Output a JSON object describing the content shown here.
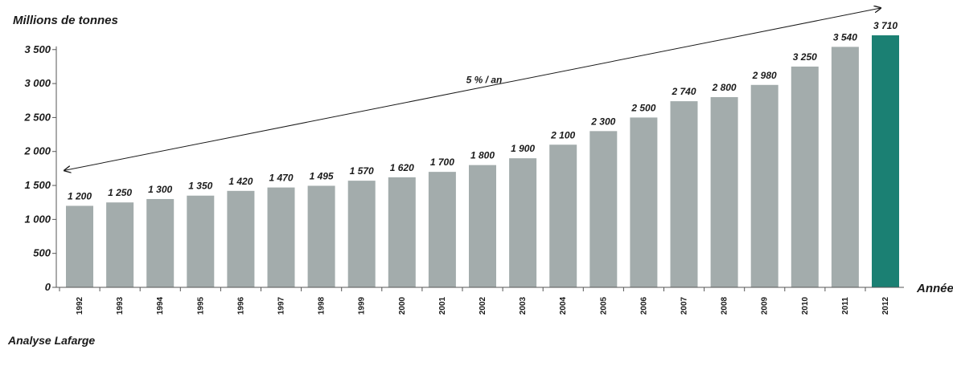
{
  "chart_data": {
    "type": "bar",
    "ylabel": "Millions de tonnes",
    "xlabel": "Année",
    "source": "Analyse Lafarge",
    "trend_label": "5 % / an",
    "categories": [
      "1992",
      "1993",
      "1994",
      "1995",
      "1996",
      "1997",
      "1998",
      "1999",
      "2000",
      "2001",
      "2002",
      "2003",
      "2004",
      "2005",
      "2006",
      "2007",
      "2008",
      "2009",
      "2010",
      "2011",
      "2012"
    ],
    "values": [
      1200,
      1250,
      1300,
      1350,
      1420,
      1470,
      1495,
      1570,
      1620,
      1700,
      1800,
      1900,
      2100,
      2300,
      2500,
      2740,
      2800,
      2980,
      3250,
      3540,
      3710
    ],
    "value_labels": [
      "1 200",
      "1 250",
      "1 300",
      "1 350",
      "1 420",
      "1 470",
      "1 495",
      "1 570",
      "1 620",
      "1 700",
      "1 800",
      "1 900",
      "2 100",
      "2 300",
      "2 500",
      "2 740",
      "2 800",
      "2 980",
      "3 250",
      "3 540",
      "3 710"
    ],
    "yticks": [
      0,
      500,
      1000,
      1500,
      2000,
      2500,
      3000,
      3500
    ],
    "ytick_labels": [
      "0",
      "500",
      "1 000",
      "1 500",
      "2 000",
      "2 500",
      "3 000",
      "3 500"
    ],
    "ylim": [
      0,
      3710
    ],
    "grid": false,
    "colors": {
      "bar": "#a3acac",
      "highlight": "#1b8073",
      "highlight_category": "2012",
      "text": "#1a1a1a"
    }
  }
}
